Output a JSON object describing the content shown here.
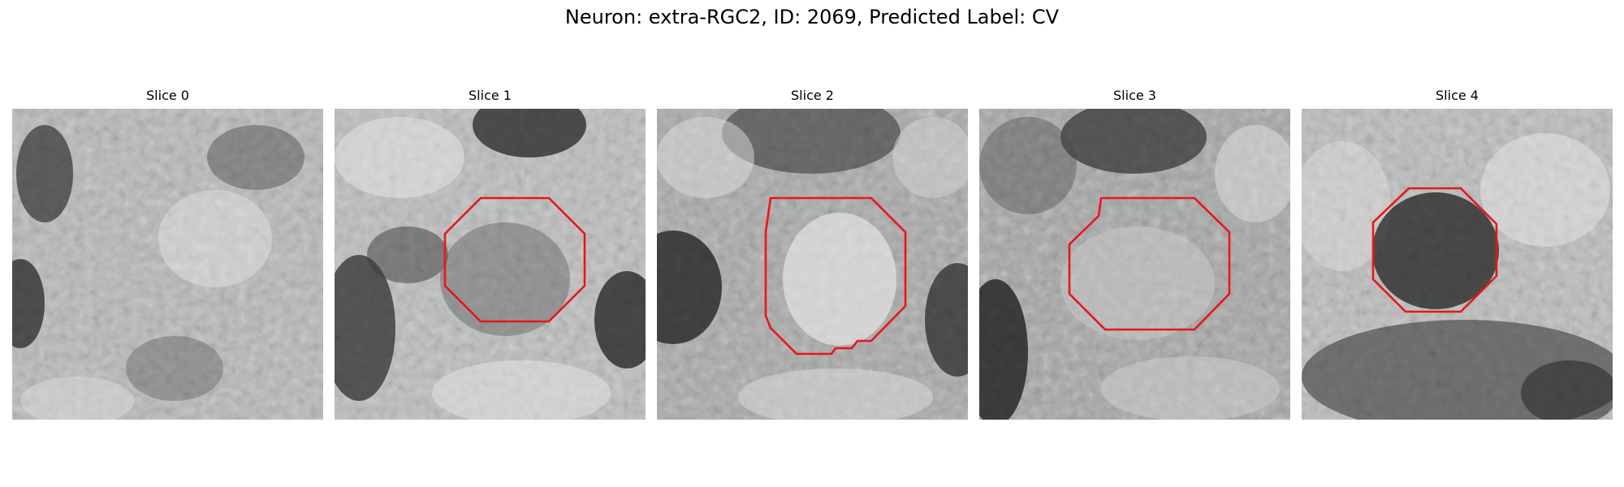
{
  "figure": {
    "title": "Neuron: extra-RGC2, ID: 2069, Predicted Label: CV"
  },
  "colors": {
    "outline": "#e8161b",
    "background": "#ffffff",
    "colormap": "grayscale"
  },
  "slices": [
    {
      "title": "Slice 0",
      "has_outline": false
    },
    {
      "title": "Slice 1",
      "has_outline": true
    },
    {
      "title": "Slice 2",
      "has_outline": true
    },
    {
      "title": "Slice 3",
      "has_outline": true
    },
    {
      "title": "Slice 4",
      "has_outline": true
    }
  ]
}
